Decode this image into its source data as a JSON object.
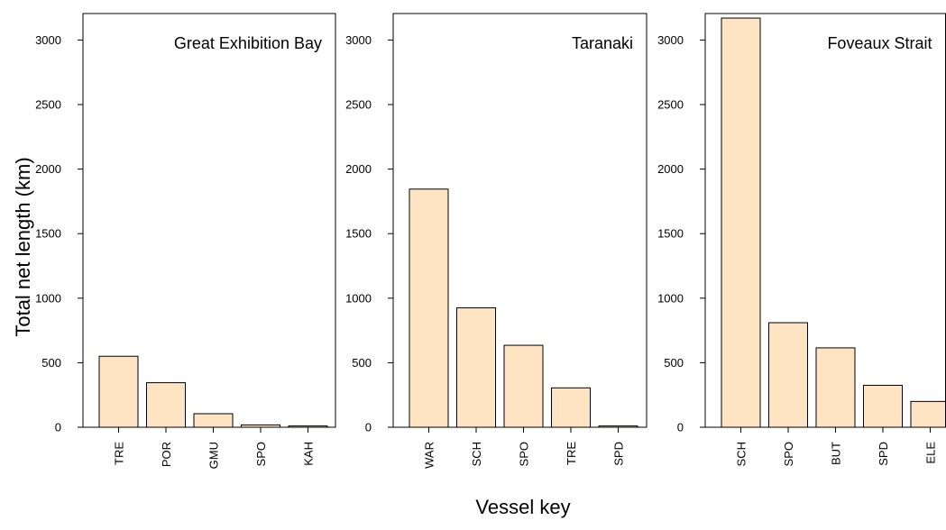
{
  "chart_data": {
    "type": "bar",
    "ylabel": "Total net length (km)",
    "xlabel": "Vessel key",
    "ylim": [
      0,
      3150
    ],
    "yticks": [
      0,
      500,
      1000,
      1500,
      2000,
      2500,
      3000
    ],
    "bar_color": "#ffe4c4",
    "panels": [
      {
        "title": "Great Exhibition Bay",
        "categories": [
          "TRE",
          "POR",
          "GMU",
          "SPO",
          "KAH"
        ],
        "values": [
          550,
          345,
          105,
          18,
          10
        ]
      },
      {
        "title": "Taranaki",
        "categories": [
          "WAR",
          "SCH",
          "SPO",
          "TRE",
          "SPD"
        ],
        "values": [
          1845,
          925,
          635,
          305,
          10
        ]
      },
      {
        "title": "Foveaux Strait",
        "categories": [
          "SCH",
          "SPO",
          "BUT",
          "SPD",
          "ELE"
        ],
        "values": [
          3170,
          810,
          615,
          325,
          200
        ]
      }
    ]
  }
}
